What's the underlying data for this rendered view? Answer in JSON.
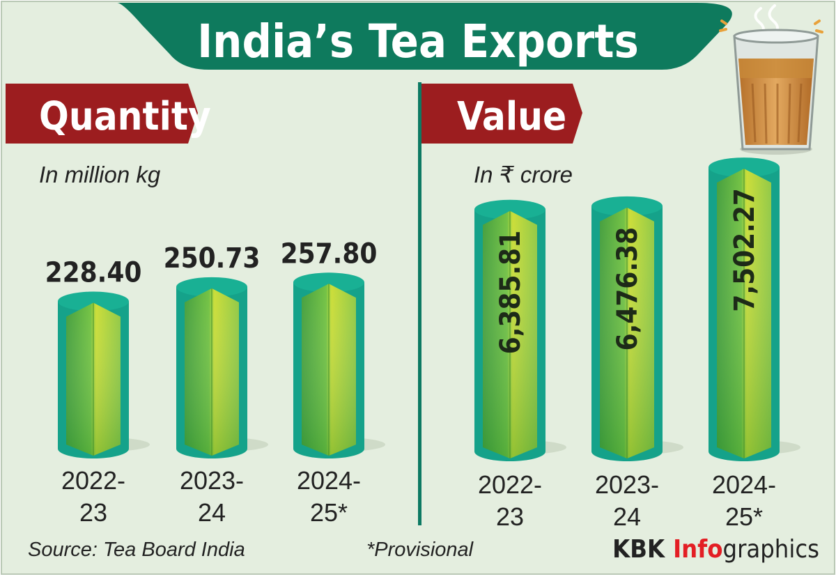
{
  "title": "India’s Tea Exports",
  "footer": {
    "source": "Source: Tea Board India",
    "note": "*Provisional",
    "brand_bold": "KBK",
    "brand_accent": "Info",
    "brand_rest": "graphics"
  },
  "colors": {
    "background": "#e4eedf",
    "title_green": "#0e7a5d",
    "label_red": "#9c1d1f",
    "divider": "#0d7a63",
    "cylinder_edge": "#17a18a",
    "bar_green_dark": "#5bb43a",
    "bar_green_light": "#d4e02a",
    "brand_red": "#e31e24"
  },
  "icons": [
    "tea-glass-icon"
  ],
  "chart_data": [
    {
      "type": "bar",
      "title": "Quantity",
      "unit_label": "In million kg",
      "categories": [
        "2022-23",
        "2023-24",
        "2024-25*"
      ],
      "category_lines": [
        [
          "2022-",
          "23"
        ],
        [
          "2023-",
          "24"
        ],
        [
          "2024-",
          "25*"
        ]
      ],
      "values": [
        228.4,
        250.73,
        257.8
      ],
      "value_labels": [
        "228.40",
        "250.73",
        "257.80"
      ],
      "label_position": "above",
      "ylim": [
        0,
        270
      ]
    },
    {
      "type": "bar",
      "title": "Value",
      "unit_label": "In ₹ crore",
      "categories": [
        "2022-23",
        "2023-24",
        "2024-25*"
      ],
      "category_lines": [
        [
          "2022-",
          "23"
        ],
        [
          "2023-",
          "24"
        ],
        [
          "2024-",
          "25*"
        ]
      ],
      "values": [
        6385.81,
        6476.38,
        7502.27
      ],
      "value_labels": [
        "6,385.81",
        "6,476.38",
        "7,502.27"
      ],
      "label_position": "inside-vertical",
      "ylim": [
        0,
        8000
      ]
    }
  ]
}
